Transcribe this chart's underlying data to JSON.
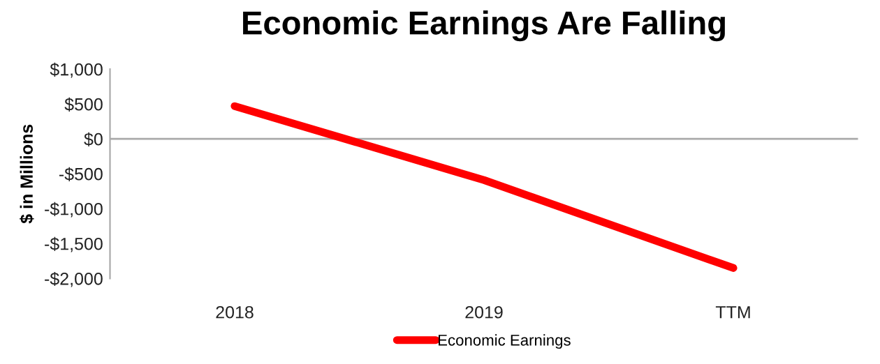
{
  "chart_data": {
    "type": "line",
    "title": "Economic Earnings Are Falling",
    "ylabel": "$ in Millions",
    "categories": [
      "2018",
      "2019",
      "TTM"
    ],
    "series": [
      {
        "name": "Economic Earnings",
        "color": "#ff0000",
        "values": [
          470,
          -590,
          -1850
        ]
      }
    ],
    "ylim": [
      -2000,
      1000
    ],
    "yticks": [
      {
        "value": 1000,
        "label": "$1,000"
      },
      {
        "value": 500,
        "label": "$500"
      },
      {
        "value": 0,
        "label": "$0"
      },
      {
        "value": -500,
        "label": "-$500"
      },
      {
        "value": -1000,
        "label": "-$1,000"
      },
      {
        "value": -1500,
        "label": "-$1,500"
      },
      {
        "value": -2000,
        "label": "-$2,000"
      }
    ],
    "ref_lines": [
      {
        "axis": "y",
        "value": 0,
        "color": "#aaaaaa",
        "line_style": "solid"
      }
    ],
    "legend": "bottom",
    "marker": "none",
    "line_style": "solid"
  }
}
